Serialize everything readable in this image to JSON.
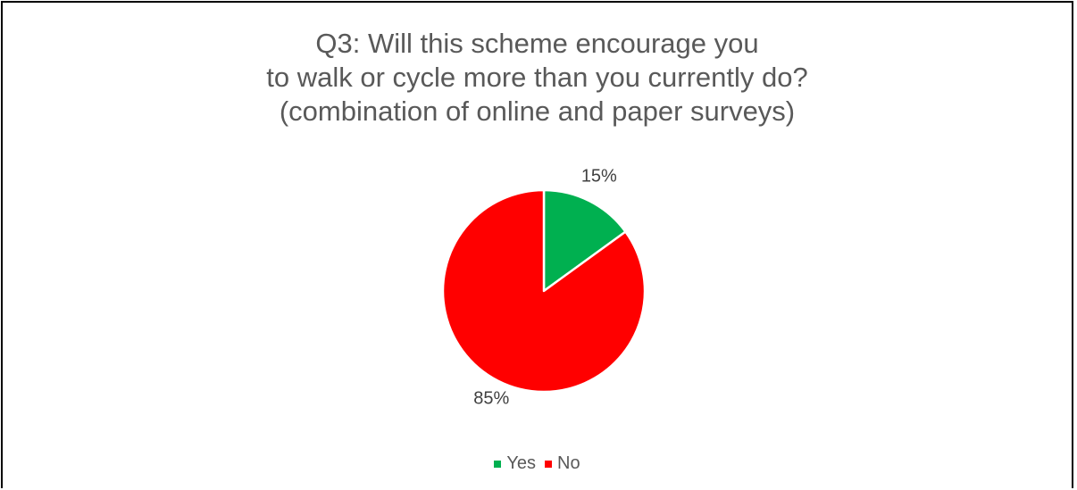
{
  "chart_data": {
    "type": "pie",
    "title_lines": [
      "Q3: Will this scheme encourage you",
      "to walk or cycle more than you currently do?",
      "(combination of online and paper surveys)"
    ],
    "categories": [
      "Yes",
      "No"
    ],
    "values": [
      15,
      85
    ],
    "data_labels": [
      "15%",
      "85%"
    ],
    "colors": [
      "#00B050",
      "#FF0000"
    ],
    "legend_position": "bottom"
  }
}
